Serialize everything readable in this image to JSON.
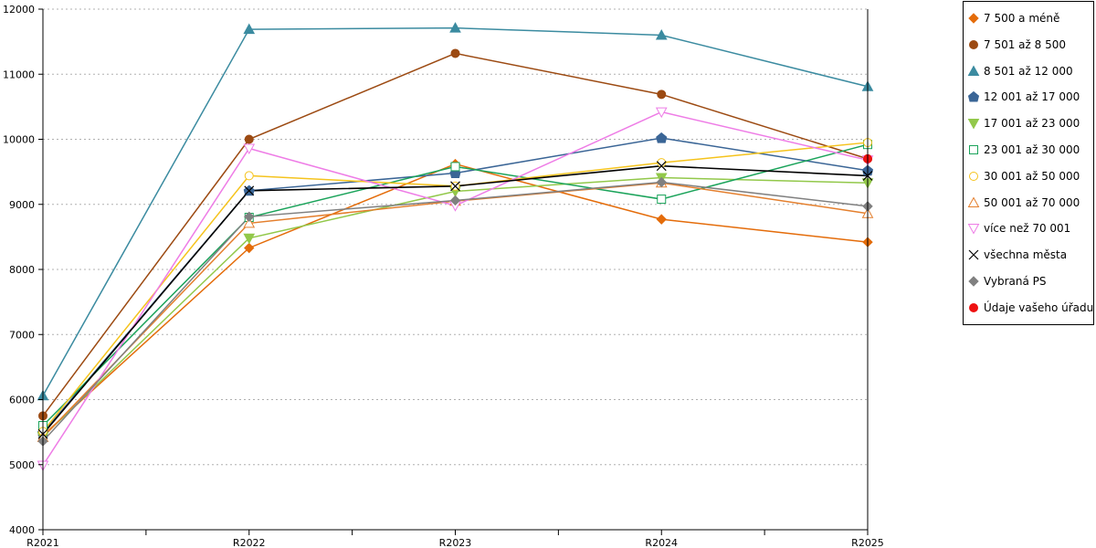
{
  "chart_data": {
    "type": "line",
    "title": "",
    "xlabel": "",
    "ylabel": "",
    "categories": [
      "R2021",
      "R2022",
      "R2023",
      "R2024",
      "R2025"
    ],
    "ylim": [
      4000,
      12000
    ],
    "yticks": [
      4000,
      5000,
      6000,
      7000,
      8000,
      9000,
      10000,
      11000,
      12000
    ],
    "grid": "horizontal dotted",
    "legend_position": "right",
    "series": [
      {
        "name": "7 500 a méně",
        "color": "#e46c0a",
        "marker": "diamond",
        "filled": true,
        "values": [
          5450,
          8330,
          9620,
          8770,
          8420
        ]
      },
      {
        "name": "7 501 až 8 500",
        "color": "#9c4a12",
        "marker": "circle",
        "filled": true,
        "values": [
          5750,
          10000,
          11320,
          10690,
          9700
        ]
      },
      {
        "name": "8 501 až 12 000",
        "color": "#3b8ba0",
        "marker": "triangle-up",
        "filled": true,
        "values": [
          6060,
          11690,
          11710,
          11600,
          10810
        ]
      },
      {
        "name": "12 001 až 17 000",
        "color": "#3a6596",
        "marker": "pentagon",
        "filled": true,
        "values": [
          5490,
          9210,
          9480,
          10020,
          9520
        ]
      },
      {
        "name": "17 001 až 23 000",
        "color": "#92c84a",
        "marker": "triangle-down",
        "filled": true,
        "values": [
          5430,
          8480,
          9200,
          9410,
          9330
        ]
      },
      {
        "name": "23 001 až 30 000",
        "color": "#1aa35a",
        "marker": "square",
        "filled": false,
        "values": [
          5600,
          8800,
          9580,
          9080,
          9920
        ]
      },
      {
        "name": "30 001 až 50 000",
        "color": "#f5c31c",
        "marker": "circle",
        "filled": false,
        "values": [
          5510,
          9440,
          9280,
          9640,
          9950
        ]
      },
      {
        "name": "50 001 až 70 000",
        "color": "#e47f2d",
        "marker": "triangle-up",
        "filled": false,
        "values": [
          5420,
          8710,
          9050,
          9330,
          8860
        ]
      },
      {
        "name": "více než 70 001",
        "color": "#ee7ce6",
        "marker": "triangle-down",
        "filled": false,
        "values": [
          4990,
          9860,
          8980,
          10420,
          9680
        ]
      },
      {
        "name": "všechna města",
        "color": "#000000",
        "marker": "x",
        "filled": false,
        "values": [
          5470,
          9210,
          9280,
          9590,
          9440
        ]
      },
      {
        "name": "Vybraná PS",
        "color": "#808080",
        "marker": "diamond",
        "filled": true,
        "values": [
          5360,
          8810,
          9060,
          9340,
          8970
        ]
      },
      {
        "name": "Údaje vašeho úřadu",
        "color": "#ee1111",
        "marker": "circle",
        "filled": true,
        "values": [
          null,
          null,
          null,
          null,
          9700
        ]
      }
    ]
  }
}
